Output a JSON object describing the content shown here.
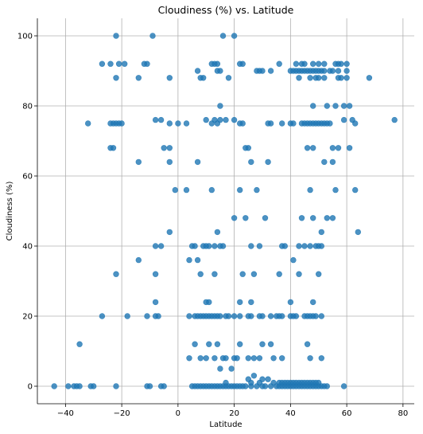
{
  "chart_data": {
    "type": "scatter",
    "title": "Cloudiness (%) vs. Latitude",
    "xlabel": "Latitude",
    "ylabel": "Cloudiness (%)",
    "xlim": [
      -50,
      84
    ],
    "ylim": [
      -5,
      105
    ],
    "xticks": [
      -40,
      -20,
      0,
      20,
      40,
      60,
      80
    ],
    "yticks": [
      0,
      20,
      40,
      60,
      80,
      100
    ],
    "grid": true,
    "color": "#1f77b4",
    "points": [
      [
        -44,
        0
      ],
      [
        -39,
        0
      ],
      [
        -37,
        0
      ],
      [
        -36,
        0
      ],
      [
        -35,
        0
      ],
      [
        -31,
        0
      ],
      [
        -30,
        0
      ],
      [
        -22,
        0
      ],
      [
        -11,
        0
      ],
      [
        -10,
        0
      ],
      [
        -6,
        0
      ],
      [
        -5,
        0
      ],
      [
        5,
        0
      ],
      [
        6,
        0
      ],
      [
        7,
        0
      ],
      [
        8,
        0
      ],
      [
        9,
        0
      ],
      [
        10,
        0
      ],
      [
        11,
        0
      ],
      [
        12,
        0
      ],
      [
        13,
        0
      ],
      [
        14,
        0
      ],
      [
        15,
        0
      ],
      [
        16,
        0
      ],
      [
        17,
        0
      ],
      [
        18,
        0
      ],
      [
        19,
        0
      ],
      [
        20,
        0
      ],
      [
        21,
        0
      ],
      [
        22,
        0
      ],
      [
        23,
        0
      ],
      [
        24,
        0
      ],
      [
        26,
        0
      ],
      [
        28,
        0
      ],
      [
        30,
        0
      ],
      [
        31,
        0
      ],
      [
        33,
        0
      ],
      [
        35,
        0
      ],
      [
        36,
        0
      ],
      [
        37,
        0
      ],
      [
        38,
        0
      ],
      [
        39,
        0
      ],
      [
        40,
        0
      ],
      [
        41,
        0
      ],
      [
        42,
        0
      ],
      [
        43,
        0
      ],
      [
        44,
        0
      ],
      [
        45,
        0
      ],
      [
        46,
        0
      ],
      [
        47,
        0
      ],
      [
        48,
        0
      ],
      [
        49,
        0
      ],
      [
        50,
        0
      ],
      [
        51,
        0
      ],
      [
        52,
        0
      ],
      [
        53,
        0
      ],
      [
        59,
        0
      ],
      [
        17,
        1
      ],
      [
        26,
        1
      ],
      [
        29,
        1
      ],
      [
        34,
        1
      ],
      [
        36,
        1
      ],
      [
        37,
        1
      ],
      [
        38,
        1
      ],
      [
        39,
        1
      ],
      [
        40,
        1
      ],
      [
        41,
        1
      ],
      [
        42,
        1
      ],
      [
        43,
        1
      ],
      [
        44,
        1
      ],
      [
        45,
        1
      ],
      [
        46,
        1
      ],
      [
        47,
        1
      ],
      [
        48,
        1
      ],
      [
        49,
        1
      ],
      [
        50,
        1
      ],
      [
        15,
        5
      ],
      [
        19,
        5
      ],
      [
        25,
        2
      ],
      [
        30,
        2
      ],
      [
        32,
        2
      ],
      [
        27,
        3
      ],
      [
        -35,
        12
      ],
      [
        4,
        8
      ],
      [
        6,
        12
      ],
      [
        8,
        8
      ],
      [
        10,
        8
      ],
      [
        11,
        12
      ],
      [
        13,
        8
      ],
      [
        14,
        12
      ],
      [
        16,
        8
      ],
      [
        17,
        8
      ],
      [
        20,
        8
      ],
      [
        21,
        8
      ],
      [
        22,
        12
      ],
      [
        25,
        8
      ],
      [
        27,
        8
      ],
      [
        29,
        8
      ],
      [
        30,
        12
      ],
      [
        33,
        12
      ],
      [
        34,
        8
      ],
      [
        37,
        8
      ],
      [
        47,
        8
      ],
      [
        51,
        8
      ],
      [
        46,
        12
      ],
      [
        -27,
        20
      ],
      [
        -18,
        20
      ],
      [
        -11,
        20
      ],
      [
        -8,
        20
      ],
      [
        -7,
        20
      ],
      [
        -8,
        24
      ],
      [
        4,
        20
      ],
      [
        6,
        20
      ],
      [
        7,
        20
      ],
      [
        8,
        20
      ],
      [
        9,
        20
      ],
      [
        10,
        20
      ],
      [
        11,
        20
      ],
      [
        12,
        20
      ],
      [
        13,
        20
      ],
      [
        14,
        20
      ],
      [
        15,
        20
      ],
      [
        17,
        20
      ],
      [
        18,
        20
      ],
      [
        20,
        20
      ],
      [
        22,
        20
      ],
      [
        25,
        20
      ],
      [
        26,
        20
      ],
      [
        29,
        20
      ],
      [
        30,
        20
      ],
      [
        33,
        20
      ],
      [
        35,
        20
      ],
      [
        36,
        20
      ],
      [
        37,
        20
      ],
      [
        40,
        20
      ],
      [
        41,
        20
      ],
      [
        42,
        20
      ],
      [
        45,
        20
      ],
      [
        46,
        20
      ],
      [
        47,
        20
      ],
      [
        48,
        20
      ],
      [
        49,
        20
      ],
      [
        51,
        20
      ],
      [
        10,
        24
      ],
      [
        11,
        24
      ],
      [
        22,
        24
      ],
      [
        26,
        24
      ],
      [
        40,
        24
      ],
      [
        48,
        24
      ],
      [
        -22,
        32
      ],
      [
        -8,
        32
      ],
      [
        8,
        32
      ],
      [
        13,
        32
      ],
      [
        23,
        32
      ],
      [
        27,
        32
      ],
      [
        36,
        32
      ],
      [
        43,
        32
      ],
      [
        50,
        32
      ],
      [
        -14,
        36
      ],
      [
        4,
        36
      ],
      [
        7,
        36
      ],
      [
        41,
        36
      ],
      [
        -8,
        40
      ],
      [
        -6,
        40
      ],
      [
        5,
        40
      ],
      [
        6,
        40
      ],
      [
        9,
        40
      ],
      [
        10,
        40
      ],
      [
        11,
        40
      ],
      [
        13,
        40
      ],
      [
        15,
        40
      ],
      [
        16,
        40
      ],
      [
        26,
        40
      ],
      [
        29,
        40
      ],
      [
        37,
        40
      ],
      [
        38,
        40
      ],
      [
        43,
        40
      ],
      [
        45,
        40
      ],
      [
        47,
        40
      ],
      [
        49,
        40
      ],
      [
        50,
        40
      ],
      [
        51,
        40
      ],
      [
        -3,
        44
      ],
      [
        14,
        44
      ],
      [
        51,
        44
      ],
      [
        64,
        44
      ],
      [
        20,
        48
      ],
      [
        24,
        48
      ],
      [
        31,
        48
      ],
      [
        44,
        48
      ],
      [
        48,
        48
      ],
      [
        53,
        48
      ],
      [
        55,
        48
      ],
      [
        -1,
        56
      ],
      [
        3,
        56
      ],
      [
        12,
        56
      ],
      [
        22,
        56
      ],
      [
        28,
        56
      ],
      [
        47,
        56
      ],
      [
        56,
        56
      ],
      [
        63,
        56
      ],
      [
        -14,
        64
      ],
      [
        -3,
        64
      ],
      [
        7,
        64
      ],
      [
        26,
        64
      ],
      [
        32,
        64
      ],
      [
        52,
        64
      ],
      [
        55,
        64
      ],
      [
        -24,
        68
      ],
      [
        -23,
        68
      ],
      [
        -5,
        68
      ],
      [
        -3,
        68
      ],
      [
        24,
        68
      ],
      [
        25,
        68
      ],
      [
        46,
        68
      ],
      [
        48,
        68
      ],
      [
        55,
        68
      ],
      [
        57,
        68
      ],
      [
        61,
        68
      ],
      [
        -32,
        75
      ],
      [
        -24,
        75
      ],
      [
        -23,
        75
      ],
      [
        -22,
        75
      ],
      [
        -21,
        75
      ],
      [
        -20,
        75
      ],
      [
        -6,
        76
      ],
      [
        -8,
        76
      ],
      [
        -3,
        75
      ],
      [
        0,
        75
      ],
      [
        3,
        75
      ],
      [
        10,
        76
      ],
      [
        12,
        75
      ],
      [
        13,
        76
      ],
      [
        14,
        75
      ],
      [
        15,
        76
      ],
      [
        17,
        76
      ],
      [
        20,
        76
      ],
      [
        22,
        75
      ],
      [
        23,
        75
      ],
      [
        32,
        75
      ],
      [
        33,
        75
      ],
      [
        37,
        75
      ],
      [
        40,
        75
      ],
      [
        41,
        75
      ],
      [
        44,
        75
      ],
      [
        45,
        75
      ],
      [
        46,
        75
      ],
      [
        47,
        75
      ],
      [
        48,
        75
      ],
      [
        49,
        75
      ],
      [
        50,
        75
      ],
      [
        51,
        75
      ],
      [
        52,
        75
      ],
      [
        53,
        75
      ],
      [
        54,
        75
      ],
      [
        59,
        76
      ],
      [
        62,
        76
      ],
      [
        63,
        75
      ],
      [
        77,
        76
      ],
      [
        15,
        80
      ],
      [
        48,
        80
      ],
      [
        53,
        80
      ],
      [
        56,
        80
      ],
      [
        59,
        80
      ],
      [
        61,
        80
      ],
      [
        -22,
        88
      ],
      [
        -14,
        88
      ],
      [
        -3,
        88
      ],
      [
        8,
        88
      ],
      [
        9,
        88
      ],
      [
        18,
        88
      ],
      [
        43,
        88
      ],
      [
        47,
        88
      ],
      [
        49,
        88
      ],
      [
        50,
        88
      ],
      [
        52,
        88
      ],
      [
        57,
        88
      ],
      [
        58,
        88
      ],
      [
        60,
        88
      ],
      [
        68,
        88
      ],
      [
        7,
        90
      ],
      [
        14,
        90
      ],
      [
        15,
        90
      ],
      [
        28,
        90
      ],
      [
        29,
        90
      ],
      [
        30,
        90
      ],
      [
        33,
        90
      ],
      [
        40,
        90
      ],
      [
        41,
        90
      ],
      [
        42,
        90
      ],
      [
        43,
        90
      ],
      [
        44,
        90
      ],
      [
        45,
        90
      ],
      [
        46,
        90
      ],
      [
        47,
        90
      ],
      [
        48,
        90
      ],
      [
        49,
        90
      ],
      [
        50,
        90
      ],
      [
        51,
        90
      ],
      [
        52,
        90
      ],
      [
        54,
        90
      ],
      [
        55,
        90
      ],
      [
        57,
        90
      ],
      [
        60,
        90
      ],
      [
        -27,
        92
      ],
      [
        -24,
        92
      ],
      [
        -21,
        92
      ],
      [
        -19,
        92
      ],
      [
        -12,
        92
      ],
      [
        -11,
        92
      ],
      [
        12,
        92
      ],
      [
        13,
        92
      ],
      [
        14,
        92
      ],
      [
        22,
        92
      ],
      [
        23,
        92
      ],
      [
        36,
        92
      ],
      [
        42,
        92
      ],
      [
        44,
        92
      ],
      [
        45,
        92
      ],
      [
        48,
        92
      ],
      [
        50,
        92
      ],
      [
        52,
        92
      ],
      [
        56,
        92
      ],
      [
        57,
        92
      ],
      [
        58,
        92
      ],
      [
        60,
        92
      ],
      [
        -22,
        100
      ],
      [
        -9,
        100
      ],
      [
        16,
        100
      ],
      [
        20,
        100
      ]
    ]
  }
}
